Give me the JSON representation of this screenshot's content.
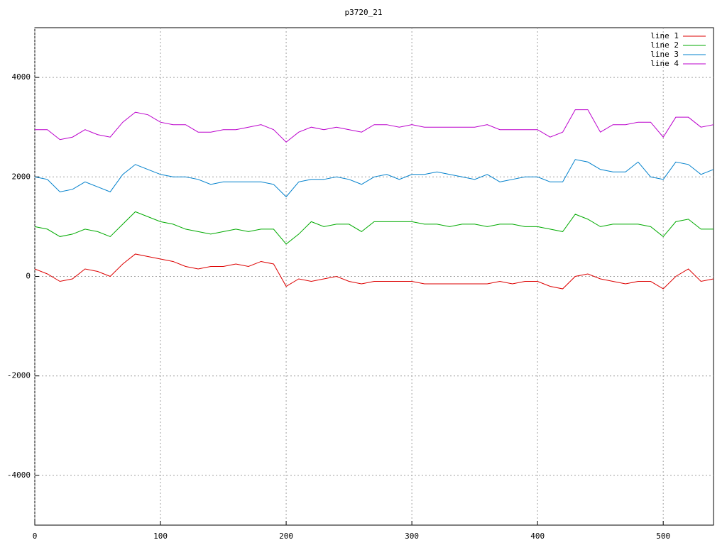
{
  "chart_data": {
    "type": "line",
    "title": "p3720_21",
    "x": [
      0,
      10,
      20,
      30,
      40,
      50,
      60,
      70,
      80,
      90,
      100,
      110,
      120,
      130,
      140,
      150,
      160,
      170,
      180,
      190,
      200,
      210,
      220,
      230,
      240,
      250,
      260,
      270,
      280,
      290,
      300,
      310,
      320,
      330,
      340,
      350,
      360,
      370,
      380,
      390,
      400,
      410,
      420,
      430,
      440,
      450,
      460,
      470,
      480,
      490,
      500,
      510,
      520,
      530,
      540
    ],
    "series": [
      {
        "name": "line 1",
        "color": "#dd0000",
        "values": [
          150,
          50,
          -100,
          -50,
          150,
          100,
          0,
          250,
          450,
          400,
          350,
          300,
          200,
          150,
          200,
          200,
          250,
          200,
          300,
          250,
          -200,
          -50,
          -100,
          -50,
          0,
          -100,
          -150,
          -100,
          -100,
          -100,
          -100,
          -150,
          -150,
          -150,
          -150,
          -150,
          -150,
          -100,
          -150,
          -100,
          -100,
          -200,
          -250,
          0,
          50,
          -50,
          -100,
          -150,
          -100,
          -100,
          -250,
          0,
          150,
          -100,
          -50
        ]
      },
      {
        "name": "line 2",
        "color": "#00aa00",
        "values": [
          1000,
          950,
          800,
          850,
          950,
          900,
          800,
          1050,
          1300,
          1200,
          1100,
          1050,
          950,
          900,
          850,
          900,
          950,
          900,
          950,
          950,
          650,
          850,
          1100,
          1000,
          1050,
          1050,
          900,
          1100,
          1100,
          1100,
          1100,
          1050,
          1050,
          1000,
          1050,
          1050,
          1000,
          1050,
          1050,
          1000,
          1000,
          950,
          900,
          1250,
          1150,
          1000,
          1050,
          1050,
          1050,
          1000,
          800,
          1100,
          1150,
          950,
          950
        ]
      },
      {
        "name": "line 3",
        "color": "#0080cc",
        "values": [
          2000,
          1950,
          1700,
          1750,
          1900,
          1800,
          1700,
          2050,
          2250,
          2150,
          2050,
          2000,
          2000,
          1950,
          1850,
          1900,
          1900,
          1900,
          1900,
          1850,
          1600,
          1900,
          1950,
          1950,
          2000,
          1950,
          1850,
          2000,
          2050,
          1950,
          2050,
          2050,
          2100,
          2050,
          2000,
          1950,
          2050,
          1900,
          1950,
          2000,
          2000,
          1900,
          1900,
          2350,
          2300,
          2150,
          2100,
          2100,
          2300,
          2000,
          1950,
          2300,
          2250,
          2050,
          2150
        ]
      },
      {
        "name": "line 4",
        "color": "#bb00cc",
        "values": [
          2950,
          2950,
          2750,
          2800,
          2950,
          2850,
          2800,
          3100,
          3300,
          3250,
          3100,
          3050,
          3050,
          2900,
          2900,
          2950,
          2950,
          3000,
          3050,
          2950,
          2700,
          2900,
          3000,
          2950,
          3000,
          2950,
          2900,
          3050,
          3050,
          3000,
          3050,
          3000,
          3000,
          3000,
          3000,
          3000,
          3050,
          2950,
          2950,
          2950,
          2950,
          2800,
          2900,
          3350,
          3350,
          2900,
          3050,
          3050,
          3100,
          3100,
          2800,
          3200,
          3200,
          3000,
          3050
        ]
      }
    ],
    "xlim": [
      0,
      540
    ],
    "ylim": [
      -5000,
      5000
    ],
    "xticks": [
      0,
      100,
      200,
      300,
      400,
      500
    ],
    "yticks": [
      -4000,
      -2000,
      0,
      2000,
      4000
    ],
    "grid": true,
    "legend": "top-right"
  }
}
